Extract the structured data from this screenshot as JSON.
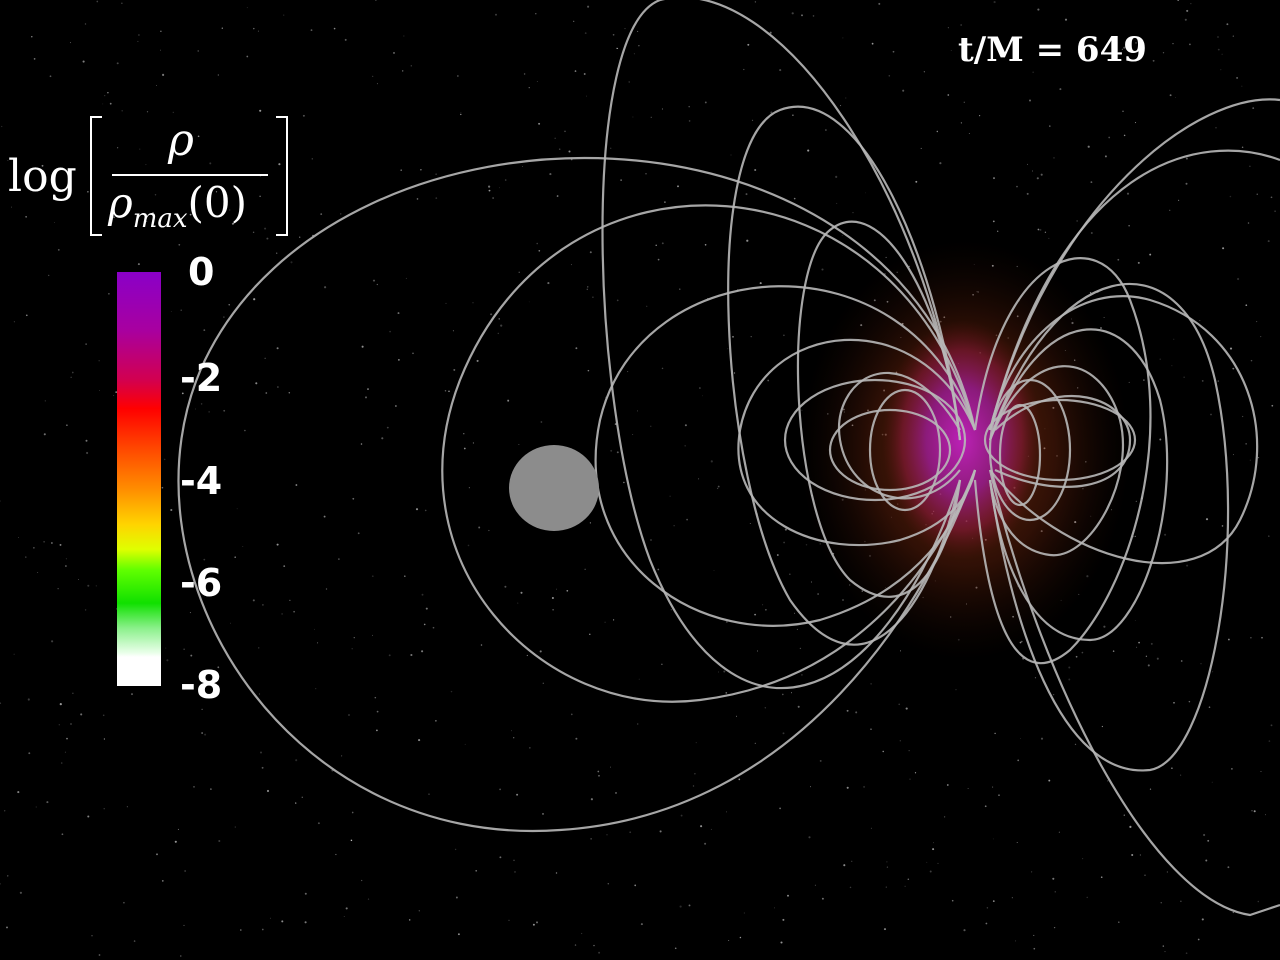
{
  "time_label": "t/M = 649",
  "colorbar": {
    "title_prefix": "log",
    "numerator": "ρ",
    "denominator_symbol": "ρ",
    "denominator_subscript": "max",
    "denominator_argument": "(0)",
    "ticks": [
      "0",
      "-2",
      "-4",
      "-6",
      "-8"
    ],
    "range": [
      -8,
      0
    ]
  },
  "colors": {
    "background": "#000000",
    "field_lines": "#b8b8b8",
    "black_hole": "#8c8c8c",
    "density_core": "#b01aa8",
    "density_halo": "#c8501e"
  }
}
